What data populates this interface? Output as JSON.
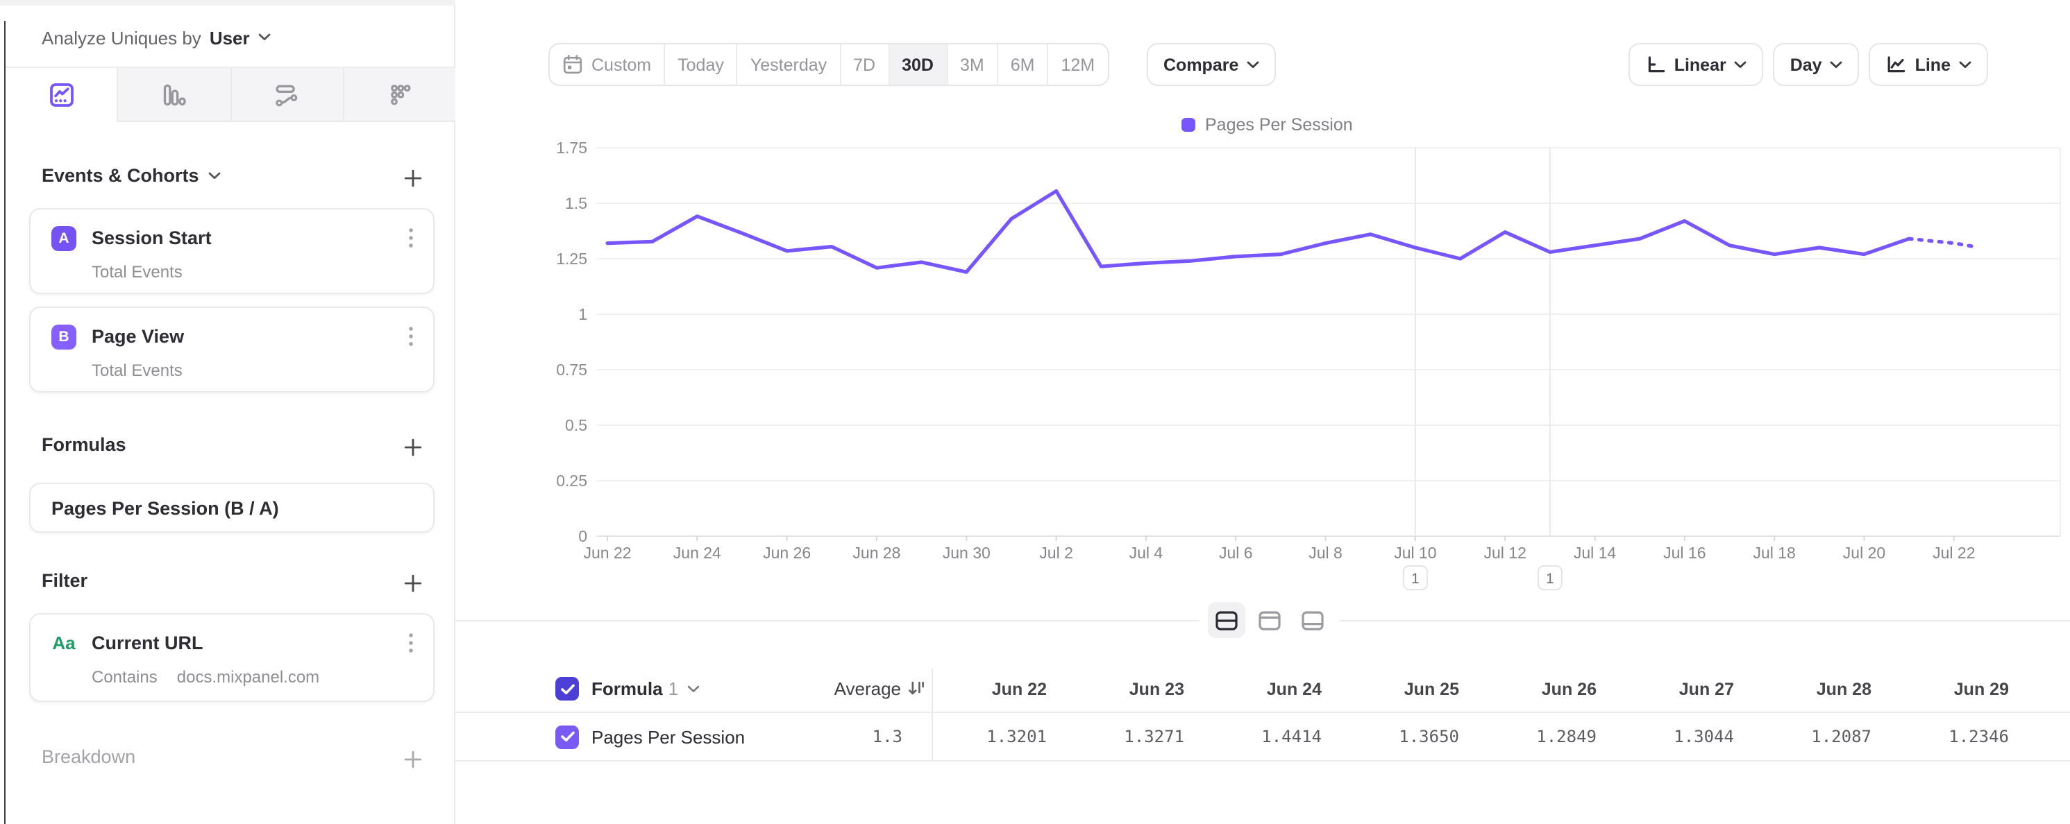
{
  "colors": {
    "accent_purple": "#7856FF",
    "badge_a": "#7452F4",
    "badge_b": "#8560FF",
    "checkbox_header": "#4B3FD6",
    "checkbox_row": "#7A5AF5",
    "filter_green": "#1F9D66"
  },
  "sidebar": {
    "analyze": {
      "label": "Analyze Uniques by",
      "value": "User"
    },
    "tabs": [
      {
        "icon": "insights-line-chart-icon",
        "active": true
      },
      {
        "icon": "funnels-bars-icon",
        "active": false
      },
      {
        "icon": "flows-icon",
        "active": false
      },
      {
        "icon": "retention-grid-icon",
        "active": false
      }
    ],
    "events_section": {
      "title": "Events & Cohorts",
      "items": [
        {
          "badge": "A",
          "name": "Session Start",
          "subtitle": "Total Events"
        },
        {
          "badge": "B",
          "name": "Page View",
          "subtitle": "Total Events"
        }
      ]
    },
    "formulas_section": {
      "title": "Formulas",
      "items": [
        {
          "name": "Pages Per Session (B / A)"
        }
      ]
    },
    "filter_section": {
      "title": "Filter",
      "items": [
        {
          "icon_label": "Aa",
          "name": "Current URL",
          "operator": "Contains",
          "value": "docs.mixpanel.com"
        }
      ]
    },
    "breakdown_section": {
      "title": "Breakdown"
    }
  },
  "toolbar": {
    "date_ranges": [
      "Custom",
      "Today",
      "Yesterday",
      "7D",
      "30D",
      "3M",
      "6M",
      "12M"
    ],
    "active_range": "30D",
    "compare_label": "Compare",
    "scale_label": "Linear",
    "interval_label": "Day",
    "chart_type_label": "Line"
  },
  "chart_data": {
    "type": "line",
    "legend": [
      "Pages Per Session"
    ],
    "series_color": "#7856FF",
    "x": [
      "Jun 22",
      "Jun 23",
      "Jun 24",
      "Jun 25",
      "Jun 26",
      "Jun 27",
      "Jun 28",
      "Jun 29",
      "Jun 30",
      "Jul 1",
      "Jul 2",
      "Jul 3",
      "Jul 4",
      "Jul 5",
      "Jul 6",
      "Jul 7",
      "Jul 8",
      "Jul 9",
      "Jul 10",
      "Jul 11",
      "Jul 12",
      "Jul 13",
      "Jul 14",
      "Jul 15",
      "Jul 16",
      "Jul 17",
      "Jul 18",
      "Jul 19",
      "Jul 20",
      "Jul 21",
      "Jul 22"
    ],
    "series": [
      {
        "name": "Pages Per Session",
        "values": [
          1.3201,
          1.3271,
          1.4414,
          1.365,
          1.2849,
          1.3044,
          1.2087,
          1.2346,
          1.19,
          1.43,
          1.555,
          1.215,
          1.23,
          1.24,
          1.26,
          1.27,
          1.32,
          1.36,
          1.3,
          1.25,
          1.37,
          1.28,
          1.31,
          1.34,
          1.42,
          1.31,
          1.27,
          1.3,
          1.27,
          1.34,
          1.32
        ]
      }
    ],
    "ylim": [
      0,
      1.75
    ],
    "y_ticks": [
      0,
      0.25,
      0.5,
      0.75,
      1,
      1.25,
      1.5,
      1.75
    ],
    "x_tick_interval": 2,
    "grid": "horizontal",
    "legend_position": "top-center",
    "annotations": [
      {
        "x": "Jul 10",
        "label": "1"
      },
      {
        "x": "Jul 13",
        "label": "1"
      }
    ],
    "dotted_from_index": 29
  },
  "view_toggles": [
    {
      "name": "split-view",
      "active": true
    },
    {
      "name": "chart-focus-view",
      "active": false
    },
    {
      "name": "table-focus-view",
      "active": false
    }
  ],
  "table": {
    "series_label": "Formula",
    "series_number": "1",
    "average_label": "Average",
    "dates": [
      "Jun 22",
      "Jun 23",
      "Jun 24",
      "Jun 25",
      "Jun 26",
      "Jun 27",
      "Jun 28",
      "Jun 29"
    ],
    "rows": [
      {
        "name": "Pages Per Session",
        "checked": true,
        "average": "1.3",
        "values": [
          "1.3201",
          "1.3271",
          "1.4414",
          "1.3650",
          "1.2849",
          "1.3044",
          "1.2087",
          "1.2346"
        ]
      }
    ]
  }
}
